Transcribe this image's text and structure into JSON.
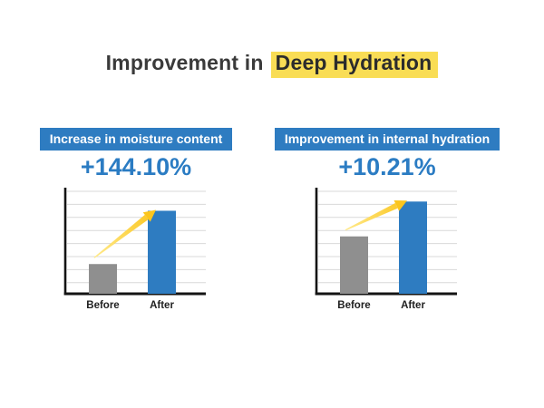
{
  "page_title": {
    "prefix": "Improvement in",
    "highlight": "Deep Hydration"
  },
  "colors": {
    "accent_blue": "#2E7CC1",
    "percent_blue": "#2B7CC3",
    "bar_gray": "#8F8F8F",
    "highlight_yellow": "#F9DD55",
    "arrow_gradient_start": "#FFEA8C",
    "arrow_gradient_end": "#FBC51D",
    "axis_black": "#141414",
    "gridline_gray": "#D9D9D9",
    "banner_text": "#FFFFFF",
    "title_text": "#3A3A3A"
  },
  "chart_data": [
    {
      "type": "bar",
      "title": "Increase in moisture content",
      "change_label": "+144.10%",
      "categories": [
        "Before",
        "After"
      ],
      "values_relative": [
        0.29,
        0.81
      ],
      "series_colors": [
        "#8F8F8F",
        "#2E7CC1"
      ],
      "ylim": [
        0,
        1
      ],
      "yticks_labeled": false,
      "grid": true,
      "gridlines": 8,
      "legend": "none",
      "annotation": "yellow-up-arrow-from-before-to-after"
    },
    {
      "type": "bar",
      "title": "Improvement in internal hydration",
      "change_label": "+10.21%",
      "categories": [
        "Before",
        "After"
      ],
      "values_relative": [
        0.56,
        0.9
      ],
      "series_colors": [
        "#8F8F8F",
        "#2E7CC1"
      ],
      "ylim": [
        0,
        1
      ],
      "yticks_labeled": false,
      "grid": true,
      "gridlines": 8,
      "legend": "none",
      "annotation": "yellow-up-arrow-from-before-to-after"
    }
  ]
}
